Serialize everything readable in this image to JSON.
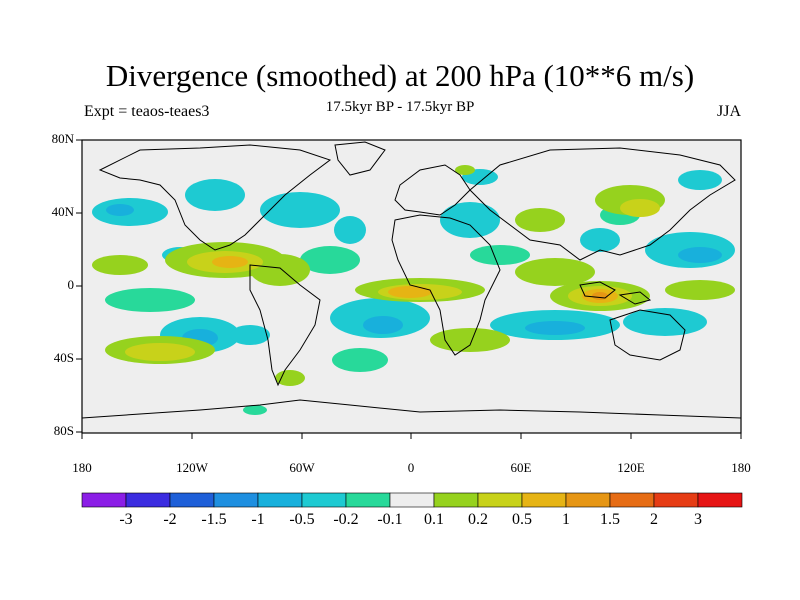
{
  "title": "Divergence (smoothed) at 200 hPa (10**6 m/s)",
  "subtitle": "17.5kyr BP - 17.5kyr BP",
  "left_label": "Expt = teaos-teaes3",
  "right_label": "JJA",
  "lat_labels": [
    "80N",
    "40N",
    "0",
    "40S",
    "80S"
  ],
  "lon_labels": [
    "180",
    "120W",
    "60W",
    "0",
    "60E",
    "120E",
    "180"
  ],
  "colorbar": {
    "labels": [
      "-3",
      "-2",
      "-1.5",
      "-1",
      "-0.5",
      "-0.2",
      "-0.1",
      "0.1",
      "0.2",
      "0.5",
      "1",
      "1.5",
      "2",
      "3"
    ],
    "colors": [
      "#8b1ee6",
      "#3b2ce0",
      "#1e5fd8",
      "#1e8fe0",
      "#18b0dc",
      "#1ecad2",
      "#28d99a",
      "#eeeeee",
      "#96d21e",
      "#c8d21a",
      "#e6b414",
      "#e69614",
      "#e66c14",
      "#e63c14",
      "#e61414"
    ]
  },
  "colors": {
    "neg_weak": "#28d99a",
    "neg_mod": "#1ecad2",
    "neg_strong": "#18b0dc",
    "neg_stronger": "#1e8fe0",
    "pos_weak": "#96d21e",
    "pos_mod": "#c8d21a",
    "pos_strong": "#e6b414",
    "pos_stronger": "#e69614",
    "background": "#eeeeee"
  }
}
